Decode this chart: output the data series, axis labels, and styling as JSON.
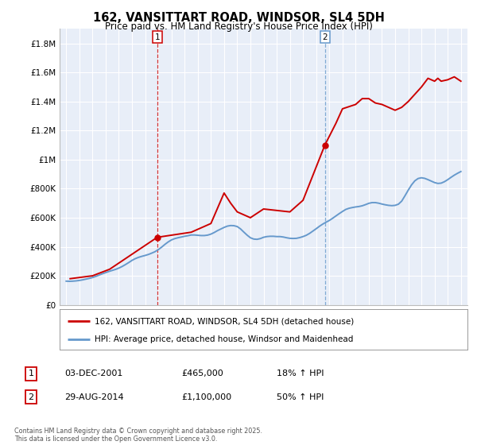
{
  "title": "162, VANSITTART ROAD, WINDSOR, SL4 5DH",
  "subtitle": "Price paid vs. HM Land Registry's House Price Index (HPI)",
  "hpi_label": "HPI: Average price, detached house, Windsor and Maidenhead",
  "house_label": "162, VANSITTART ROAD, WINDSOR, SL4 5DH (detached house)",
  "footnote": "Contains HM Land Registry data © Crown copyright and database right 2025.\nThis data is licensed under the Open Government Licence v3.0.",
  "transaction1_label": "1",
  "transaction1_date": "03-DEC-2001",
  "transaction1_price": "£465,000",
  "transaction1_hpi": "18% ↑ HPI",
  "transaction2_label": "2",
  "transaction2_date": "29-AUG-2014",
  "transaction2_price": "£1,100,000",
  "transaction2_hpi": "50% ↑ HPI",
  "house_color": "#cc0000",
  "hpi_color": "#6699cc",
  "marker1_x": 2001.92,
  "marker1_y": 465000,
  "marker2_x": 2014.66,
  "marker2_y": 1100000,
  "vline1_x": 2001.92,
  "vline2_x": 2014.66,
  "ylim": [
    0,
    1900000
  ],
  "xlim": [
    1994.5,
    2025.5
  ],
  "yticks": [
    0,
    200000,
    400000,
    600000,
    800000,
    1000000,
    1200000,
    1400000,
    1600000,
    1800000
  ],
  "ytick_labels": [
    "£0",
    "£200K",
    "£400K",
    "£600K",
    "£800K",
    "£1M",
    "£1.2M",
    "£1.4M",
    "£1.6M",
    "£1.8M"
  ],
  "background_color": "#ffffff",
  "plot_bg_color": "#e8eef8",
  "grid_color": "#ffffff",
  "hpi_years": [
    1995.0,
    1995.25,
    1995.5,
    1995.75,
    1996.0,
    1996.25,
    1996.5,
    1996.75,
    1997.0,
    1997.25,
    1997.5,
    1997.75,
    1998.0,
    1998.25,
    1998.5,
    1998.75,
    1999.0,
    1999.25,
    1999.5,
    1999.75,
    2000.0,
    2000.25,
    2000.5,
    2000.75,
    2001.0,
    2001.25,
    2001.5,
    2001.75,
    2002.0,
    2002.25,
    2002.5,
    2002.75,
    2003.0,
    2003.25,
    2003.5,
    2003.75,
    2004.0,
    2004.25,
    2004.5,
    2004.75,
    2005.0,
    2005.25,
    2005.5,
    2005.75,
    2006.0,
    2006.25,
    2006.5,
    2006.75,
    2007.0,
    2007.25,
    2007.5,
    2007.75,
    2008.0,
    2008.25,
    2008.5,
    2008.75,
    2009.0,
    2009.25,
    2009.5,
    2009.75,
    2010.0,
    2010.25,
    2010.5,
    2010.75,
    2011.0,
    2011.25,
    2011.5,
    2011.75,
    2012.0,
    2012.25,
    2012.5,
    2012.75,
    2013.0,
    2013.25,
    2013.5,
    2013.75,
    2014.0,
    2014.25,
    2014.5,
    2014.75,
    2015.0,
    2015.25,
    2015.5,
    2015.75,
    2016.0,
    2016.25,
    2016.5,
    2016.75,
    2017.0,
    2017.25,
    2017.5,
    2017.75,
    2018.0,
    2018.25,
    2018.5,
    2018.75,
    2019.0,
    2019.25,
    2019.5,
    2019.75,
    2020.0,
    2020.25,
    2020.5,
    2020.75,
    2021.0,
    2021.25,
    2021.5,
    2021.75,
    2022.0,
    2022.25,
    2022.5,
    2022.75,
    2023.0,
    2023.25,
    2023.5,
    2023.75,
    2024.0,
    2024.25,
    2024.5,
    2024.75,
    2025.0
  ],
  "hpi_values": [
    163000,
    162000,
    163000,
    165000,
    168000,
    172000,
    177000,
    182000,
    188000,
    196000,
    205000,
    214000,
    222000,
    230000,
    237000,
    244000,
    253000,
    264000,
    277000,
    291000,
    306000,
    318000,
    327000,
    334000,
    340000,
    347000,
    356000,
    366000,
    380000,
    397000,
    416000,
    433000,
    447000,
    456000,
    462000,
    467000,
    472000,
    476000,
    481000,
    481000,
    479000,
    477000,
    477000,
    480000,
    487000,
    498000,
    511000,
    522000,
    533000,
    542000,
    546000,
    545000,
    539000,
    523000,
    501000,
    480000,
    462000,
    453000,
    451000,
    456000,
    465000,
    470000,
    472000,
    472000,
    470000,
    470000,
    467000,
    462000,
    458000,
    457000,
    458000,
    463000,
    470000,
    479000,
    492000,
    508000,
    524000,
    541000,
    556000,
    569000,
    581000,
    596000,
    612000,
    628000,
    643000,
    657000,
    665000,
    670000,
    674000,
    677000,
    682000,
    690000,
    699000,
    704000,
    704000,
    700000,
    694000,
    689000,
    685000,
    683000,
    685000,
    693000,
    714000,
    751000,
    790000,
    826000,
    854000,
    870000,
    875000,
    871000,
    862000,
    852000,
    842000,
    836000,
    838000,
    848000,
    862000,
    878000,
    893000,
    906000,
    918000
  ],
  "house_years": [
    1995.3,
    1997.0,
    1998.3,
    2001.92,
    2004.5,
    2006.0,
    2007.0,
    2007.5,
    2008.0,
    2009.0,
    2010.0,
    2011.0,
    2012.0,
    2013.0,
    2014.66,
    2015.5,
    2016.0,
    2017.0,
    2017.5,
    2018.0,
    2018.5,
    2019.0,
    2019.5,
    2020.0,
    2020.5,
    2021.0,
    2021.5,
    2022.0,
    2022.25,
    2022.5,
    2022.75,
    2023.0,
    2023.25,
    2023.5,
    2024.0,
    2024.5,
    2025.0
  ],
  "house_values": [
    180000,
    200000,
    245000,
    465000,
    500000,
    560000,
    770000,
    700000,
    640000,
    600000,
    660000,
    650000,
    640000,
    720000,
    1100000,
    1250000,
    1350000,
    1380000,
    1420000,
    1420000,
    1390000,
    1380000,
    1360000,
    1340000,
    1360000,
    1400000,
    1450000,
    1500000,
    1530000,
    1560000,
    1550000,
    1540000,
    1560000,
    1540000,
    1550000,
    1570000,
    1540000
  ]
}
